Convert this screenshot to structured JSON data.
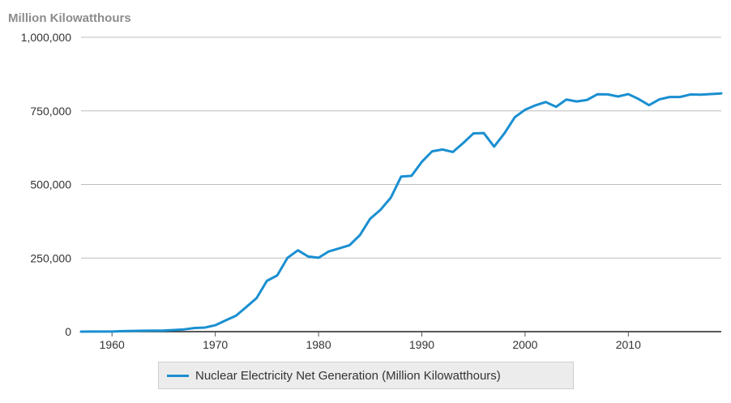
{
  "chart_data": {
    "type": "line",
    "unit_label": "Million Kilowatthours",
    "xlim": [
      1957,
      2019
    ],
    "ylim": [
      0,
      1000000
    ],
    "y_ticks": [
      0,
      250000,
      500000,
      750000,
      1000000
    ],
    "y_tick_labels": [
      "0",
      "250,000",
      "500,000",
      "750,000",
      "1,000,000"
    ],
    "x_ticks": [
      1960,
      1970,
      1980,
      1990,
      2000,
      2010
    ],
    "x_tick_labels": [
      "1960",
      "1970",
      "1980",
      "1990",
      "2000",
      "2010"
    ],
    "grid": true,
    "legend_position": "bottom-center",
    "series": [
      {
        "name": "Nuclear Electricity Net Generation (Million Kilowatthours)",
        "color": "#1a8fd1",
        "x": [
          1957,
          1958,
          1959,
          1960,
          1961,
          1962,
          1963,
          1964,
          1965,
          1966,
          1967,
          1968,
          1969,
          1970,
          1971,
          1972,
          1973,
          1974,
          1975,
          1976,
          1977,
          1978,
          1979,
          1980,
          1981,
          1982,
          1983,
          1984,
          1985,
          1986,
          1987,
          1988,
          1989,
          1990,
          1991,
          1992,
          1993,
          1994,
          1995,
          1996,
          1997,
          1998,
          1999,
          2000,
          2001,
          2002,
          2003,
          2004,
          2005,
          2006,
          2007,
          2008,
          2009,
          2010,
          2011,
          2012,
          2013,
          2014,
          2015,
          2016,
          2017,
          2018,
          2019
        ],
        "values": [
          10,
          200,
          200,
          500,
          1700,
          2300,
          3200,
          3300,
          3700,
          5500,
          7700,
          12500,
          13900,
          21800,
          38100,
          54100,
          83500,
          114000,
          172500,
          191100,
          250900,
          276400,
          255200,
          251100,
          272700,
          282800,
          293700,
          327600,
          383700,
          414000,
          455300,
          527000,
          529400,
          576900,
          612600,
          618800,
          610300,
          640400,
          673400,
          674700,
          628600,
          673700,
          728300,
          753900,
          768800,
          780100,
          763700,
          788500,
          782000,
          787200,
          806400,
          806200,
          798900,
          807000,
          790200,
          769300,
          789000,
          797200,
          797200,
          805700,
          805000,
          807100,
          809400
        ]
      }
    ]
  }
}
